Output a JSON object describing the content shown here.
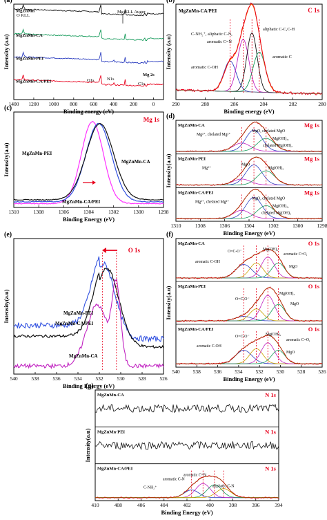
{
  "panels": [
    {
      "id": "a",
      "letter": "(a)",
      "xlabel": "Binding energy (eV)",
      "ylabel": "Intensity (a.u)",
      "xlim": [
        1400,
        -100
      ],
      "xticks": [
        1400,
        1200,
        1000,
        800,
        600,
        400,
        200,
        0
      ],
      "tag": "",
      "tagColor": "#e8001c",
      "annotations": [
        "O KLL",
        "Mg KLL Auger",
        "Mg 2s",
        "O1s",
        "N1s",
        "C1s"
      ],
      "rows": [
        {
          "name": "MgZnMn",
          "color": "#111111"
        },
        {
          "name": "MgZnMn-CA",
          "color": "#159a5a"
        },
        {
          "name": "MgZnMn-PEI",
          "color": "#2d3fc0"
        },
        {
          "name": "MgZnMn-CA/PEI",
          "color": "#e8001c"
        }
      ]
    },
    {
      "id": "b",
      "letter": "(b)",
      "xlabel": "Binding energy (eV)",
      "ylabel": "Intensity (a.u)",
      "xlim": [
        290,
        280
      ],
      "xticks": [
        290,
        288,
        286,
        284,
        282,
        280
      ],
      "tag": "C 1s",
      "tagColor": "#e8001c",
      "sample": "MgZnMn-CA/PEI",
      "annotations": [
        "C-NH₂⁺, aliphatic C-N,",
        "aromatic C=N",
        "aliphatic C-C,C-H",
        "aromatic C",
        "aromatic C-OH"
      ]
    },
    {
      "id": "c",
      "letter": "(c)",
      "xlabel": "Binding Energy (eV)",
      "ylabel": "Intensity(a.u)",
      "xlim": [
        1310,
        1298
      ],
      "xticks": [
        1310,
        1308,
        1306,
        1304,
        1302,
        1300,
        1298
      ],
      "tag": "Mg 1s",
      "tagColor": "#e8001c",
      "annotations": [
        "MgZnMn-PEI",
        "MgZnMn-CA",
        "MgZnMn-CA/PEI"
      ]
    },
    {
      "id": "d",
      "letter": "(d)",
      "xlabel": "Binding Energy (eV)",
      "ylabel": "Intensity(a.u)",
      "xlim": [
        1310,
        1298
      ],
      "xticks": [
        1310,
        1308,
        1306,
        1304,
        1302,
        1300,
        1298
      ],
      "tag": "Mg 1s",
      "tagColor": "#e8001c",
      "subplots": [
        {
          "name": "MgZnMn-CA",
          "labels": [
            "Mg²⁺, chelated Mg²⁺",
            "MgO, chelated MgO",
            "Mg(OH)₂,",
            "chelated Mg(OH)₂"
          ]
        },
        {
          "name": "MgZnMn-PEI",
          "labels": [
            "Mg²⁺",
            "MgO",
            "Mg(OH)₂"
          ]
        },
        {
          "name": "MgZnMn-CA/PEI",
          "labels": [
            "Mg²⁺, chelated Mg²⁺",
            "MgO, chelated MgO",
            "Mg(OH)₂,",
            "chelated Mg(OH)₂"
          ]
        }
      ]
    },
    {
      "id": "e",
      "letter": "(e)",
      "xlabel": "Binding Energy (eV)",
      "ylabel": "Intensity(a.u)",
      "xlim": [
        540,
        526
      ],
      "xticks": [
        540,
        538,
        536,
        534,
        532,
        530,
        528,
        526
      ],
      "tag": "O 1s",
      "tagColor": "#e8001c",
      "annotations": [
        "MgZnMn-PEI",
        "MgZnMn-CA/PEI",
        "MgZnMn-CA"
      ]
    },
    {
      "id": "f",
      "letter": "(f)",
      "xlabel": "Binding Energy (eV)",
      "ylabel": "Intensity(a.u)",
      "xlim": [
        540,
        526
      ],
      "xticks": [
        540,
        538,
        536,
        534,
        532,
        530,
        528,
        526
      ],
      "tag": "O 1s",
      "tagColor": "#e8001c",
      "subplots": [
        {
          "name": "MgZnMn-CA",
          "labels": [
            "O=C-O⁻",
            "Mg(OH)₂",
            "aromatic C=O,",
            "aromatic C-OH",
            "MgO"
          ]
        },
        {
          "name": "MgZnMn-PEI",
          "labels": [
            "Mg(OH)₂",
            "O=C-O⁻",
            "MgO"
          ]
        },
        {
          "name": "MgZnMn-CA/PEI",
          "labels": [
            "O=C-O⁻",
            "Mg(OH)₂",
            "aromatic C=O,",
            "aromatic C-OH",
            "MgO"
          ]
        }
      ]
    },
    {
      "id": "g",
      "letter": "(g)",
      "xlabel": "Binding Energy (eV)",
      "ylabel": "Intensity(a.u)",
      "xlim": [
        410,
        394
      ],
      "xticks": [
        410,
        408,
        406,
        404,
        402,
        400,
        398,
        396,
        394
      ],
      "tag": "N 1s",
      "tagColor": "#e8001c",
      "subplots": [
        {
          "name": "MgZnMn-CA",
          "labels": []
        },
        {
          "name": "MgZnMn-PEI",
          "labels": []
        },
        {
          "name": "MgZnMn-CA/PEI",
          "labels": [
            "aromatic C-N",
            "aromatic C=N",
            "C-NH₂⁺",
            "aliphatic C-N"
          ]
        }
      ]
    }
  ],
  "chart_data": [
    {
      "type": "line",
      "panel": "(a)",
      "xlabel": "Binding energy (eV)",
      "ylabel": "Intensity (a.u)",
      "xlim": [
        1400,
        -100
      ],
      "x": [
        1400,
        1300,
        1200,
        1100,
        1000,
        900,
        800,
        700,
        600,
        531,
        500,
        400,
        285,
        200,
        100,
        0,
        -100
      ],
      "series": [
        {
          "name": "MgZnMn",
          "values": [
            0.55,
            0.6,
            0.66,
            0.7,
            0.74,
            0.78,
            0.84,
            0.9,
            0.95,
            1.0,
            0.7,
            0.55,
            0.5,
            0.45,
            0.38,
            0.3,
            0.25
          ]
        },
        {
          "name": "MgZnMn-CA",
          "values": [
            0.4,
            0.45,
            0.5,
            0.54,
            0.58,
            0.62,
            0.66,
            0.7,
            0.74,
            0.85,
            0.55,
            0.45,
            0.5,
            0.4,
            0.32,
            0.25,
            0.2
          ]
        },
        {
          "name": "MgZnMn-PEI",
          "values": [
            0.35,
            0.4,
            0.44,
            0.48,
            0.52,
            0.55,
            0.58,
            0.62,
            0.66,
            0.8,
            0.5,
            0.42,
            0.45,
            0.35,
            0.3,
            0.22,
            0.18
          ]
        },
        {
          "name": "MgZnMn-CA/PEI",
          "values": [
            0.3,
            0.35,
            0.4,
            0.44,
            0.48,
            0.52,
            0.56,
            0.6,
            0.65,
            0.9,
            0.5,
            0.48,
            0.75,
            0.4,
            0.3,
            0.22,
            0.18
          ]
        }
      ]
    },
    {
      "type": "line",
      "panel": "(b)",
      "title": "C 1s",
      "xlabel": "Binding energy (eV)",
      "ylabel": "Intensity (a.u)",
      "xlim": [
        290,
        280
      ],
      "x": [
        290,
        289,
        288,
        287,
        286.3,
        285.6,
        285,
        284.6,
        284.2,
        283.5,
        283,
        282,
        281,
        280
      ],
      "series": [
        {
          "name": "MgZnMn-CA/PEI",
          "values": [
            0.05,
            0.07,
            0.12,
            0.25,
            0.45,
            0.68,
            0.92,
            1.0,
            0.85,
            0.45,
            0.2,
            0.06,
            0.04,
            0.03
          ]
        }
      ],
      "components_center_eV": [
        286.3,
        285.4,
        284.8,
        284.3
      ]
    },
    {
      "type": "line",
      "panel": "(c)",
      "title": "Mg 1s",
      "xlabel": "Binding Energy (eV)",
      "ylabel": "Intensity(a.u)",
      "xlim": [
        1310,
        1298
      ],
      "x": [
        1310,
        1308,
        1307,
        1306,
        1305,
        1304,
        1303.5,
        1303,
        1302,
        1301,
        1300,
        1299,
        1298
      ],
      "series": [
        {
          "name": "MgZnMn-PEI",
          "values": [
            0.05,
            0.07,
            0.12,
            0.3,
            0.7,
            0.98,
            1.0,
            0.9,
            0.5,
            0.2,
            0.08,
            0.05,
            0.04
          ]
        },
        {
          "name": "MgZnMn-CA",
          "values": [
            0.07,
            0.1,
            0.15,
            0.28,
            0.55,
            0.85,
            0.98,
            1.0,
            0.75,
            0.35,
            0.15,
            0.1,
            0.08
          ]
        },
        {
          "name": "MgZnMn-CA/PEI",
          "values": [
            0.05,
            0.08,
            0.12,
            0.25,
            0.55,
            0.88,
            0.98,
            0.98,
            0.65,
            0.28,
            0.1,
            0.06,
            0.05
          ]
        }
      ]
    },
    {
      "type": "line",
      "panel": "(d)",
      "title": "Mg 1s",
      "xlabel": "Binding Energy (eV)",
      "ylabel": "Intensity(a.u)",
      "xlim": [
        1310,
        1298
      ],
      "components_center_eV": {
        "Mg2+": 1304.6,
        "MgO": 1303.6,
        "Mg(OH)2": 1302.6
      }
    },
    {
      "type": "line",
      "panel": "(e)",
      "title": "O 1s",
      "xlabel": "Binding Energy (eV)",
      "ylabel": "Intensity(a.u)",
      "xlim": [
        540,
        526
      ],
      "x": [
        540,
        538,
        536,
        535,
        534,
        533,
        532,
        531.5,
        531,
        530.5,
        530,
        529,
        528,
        527,
        526
      ],
      "series": [
        {
          "name": "MgZnMn-PEI",
          "values": [
            0.35,
            0.36,
            0.4,
            0.45,
            0.55,
            0.72,
            0.92,
            0.98,
            0.95,
            0.8,
            0.55,
            0.3,
            0.22,
            0.2,
            0.2
          ]
        },
        {
          "name": "MgZnMn-CA/PEI",
          "values": [
            0.32,
            0.34,
            0.38,
            0.44,
            0.55,
            0.74,
            0.94,
            1.0,
            0.95,
            0.8,
            0.55,
            0.32,
            0.24,
            0.22,
            0.22
          ]
        },
        {
          "name": "MgZnMn-CA",
          "values": [
            0.05,
            0.06,
            0.08,
            0.1,
            0.14,
            0.25,
            0.45,
            0.6,
            0.8,
            0.9,
            0.55,
            0.2,
            0.08,
            0.05,
            0.05
          ]
        }
      ]
    },
    {
      "type": "line",
      "panel": "(f)",
      "title": "O 1s",
      "xlabel": "Binding Energy (eV)",
      "ylabel": "Intensity(a.u)",
      "xlim": [
        540,
        526
      ],
      "components_center_eV": {
        "aromatic C-OH": 533.5,
        "O=C-O-": 532.3,
        "Mg(OH)2": 531.2,
        "MgO / aromatic C=O": 530.2
      }
    },
    {
      "type": "line",
      "panel": "(g)",
      "title": "N 1s",
      "xlabel": "Binding Energy (eV)",
      "ylabel": "Intensity(a.u)",
      "xlim": [
        410,
        394
      ],
      "components_center_eV": {
        "C-NH2+": 401.6,
        "aromatic C-N": 400.6,
        "aromatic C=N": 399.6,
        "aliphatic C-N": 398.8
      }
    }
  ]
}
